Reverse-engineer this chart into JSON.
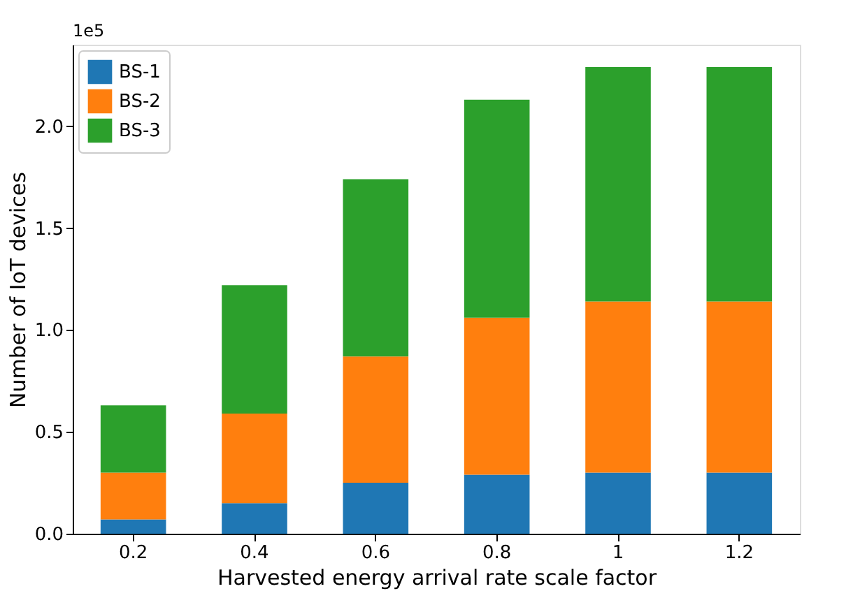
{
  "chart_data": {
    "type": "bar",
    "stacked": true,
    "xlabel": "Harvested energy arrival rate scale factor",
    "ylabel": "Number of IoT devices",
    "categories": [
      "0.2",
      "0.4",
      "0.6",
      "0.8",
      "1",
      "1.2"
    ],
    "series": [
      {
        "name": "BS-1",
        "color": "#1f77b4",
        "values": [
          0.07,
          0.15,
          0.25,
          0.29,
          0.3,
          0.3
        ]
      },
      {
        "name": "BS-2",
        "color": "#ff7f0e",
        "values": [
          0.23,
          0.44,
          0.62,
          0.77,
          0.84,
          0.84
        ]
      },
      {
        "name": "BS-3",
        "color": "#2ca02c",
        "values": [
          0.33,
          0.63,
          0.87,
          1.07,
          1.15,
          1.15
        ]
      }
    ],
    "ylim": [
      0,
      2.4
    ],
    "yticks": [
      {
        "value": 0,
        "label": "0.0"
      },
      0.5,
      {
        "value": 1,
        "label": "1.0"
      },
      1.5,
      {
        "value": 2,
        "label": "2.0"
      }
    ],
    "annotations": [
      "1e5"
    ],
    "legend": "top left",
    "grid": false
  }
}
